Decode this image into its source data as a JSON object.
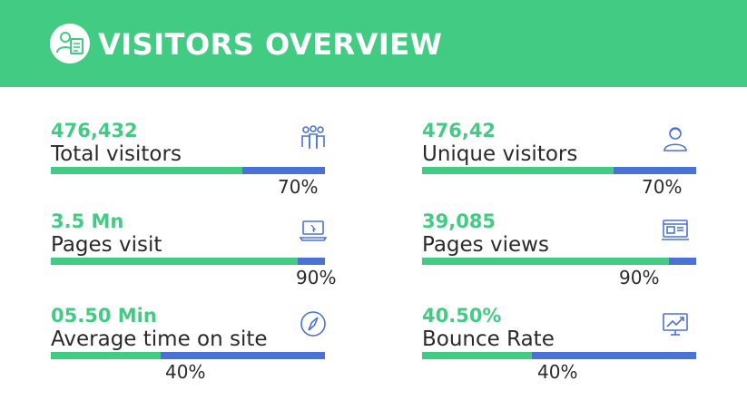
{
  "header": {
    "title": "VISITORS OVERVIEW",
    "logo_icon": "user-checklist-icon"
  },
  "colors": {
    "green": "#42cb83",
    "blue": "#4a72d6",
    "text": "#2a2a2a"
  },
  "stats": [
    {
      "value": "476,432",
      "label": "Total visitors",
      "percent": "70%",
      "fill_fraction": 0.7,
      "icon": "group-icon"
    },
    {
      "value": "476,42",
      "label": "Unique visitors",
      "percent": "70%",
      "fill_fraction": 0.7,
      "icon": "user-icon"
    },
    {
      "value": "3.5 Mn",
      "label": "Pages visit",
      "percent": "90%",
      "fill_fraction": 0.9,
      "icon": "laptop-icon"
    },
    {
      "value": "39,085",
      "label": "Pages views",
      "percent": "90%",
      "fill_fraction": 0.9,
      "icon": "browser-window-icon"
    },
    {
      "value": "05.50 Min",
      "label": "Average time on site",
      "percent": "40%",
      "fill_fraction": 0.4,
      "icon": "compass-icon"
    },
    {
      "value": "40.50%",
      "label": "Bounce Rate",
      "percent": "40%",
      "fill_fraction": 0.4,
      "icon": "chart-monitor-icon"
    }
  ]
}
